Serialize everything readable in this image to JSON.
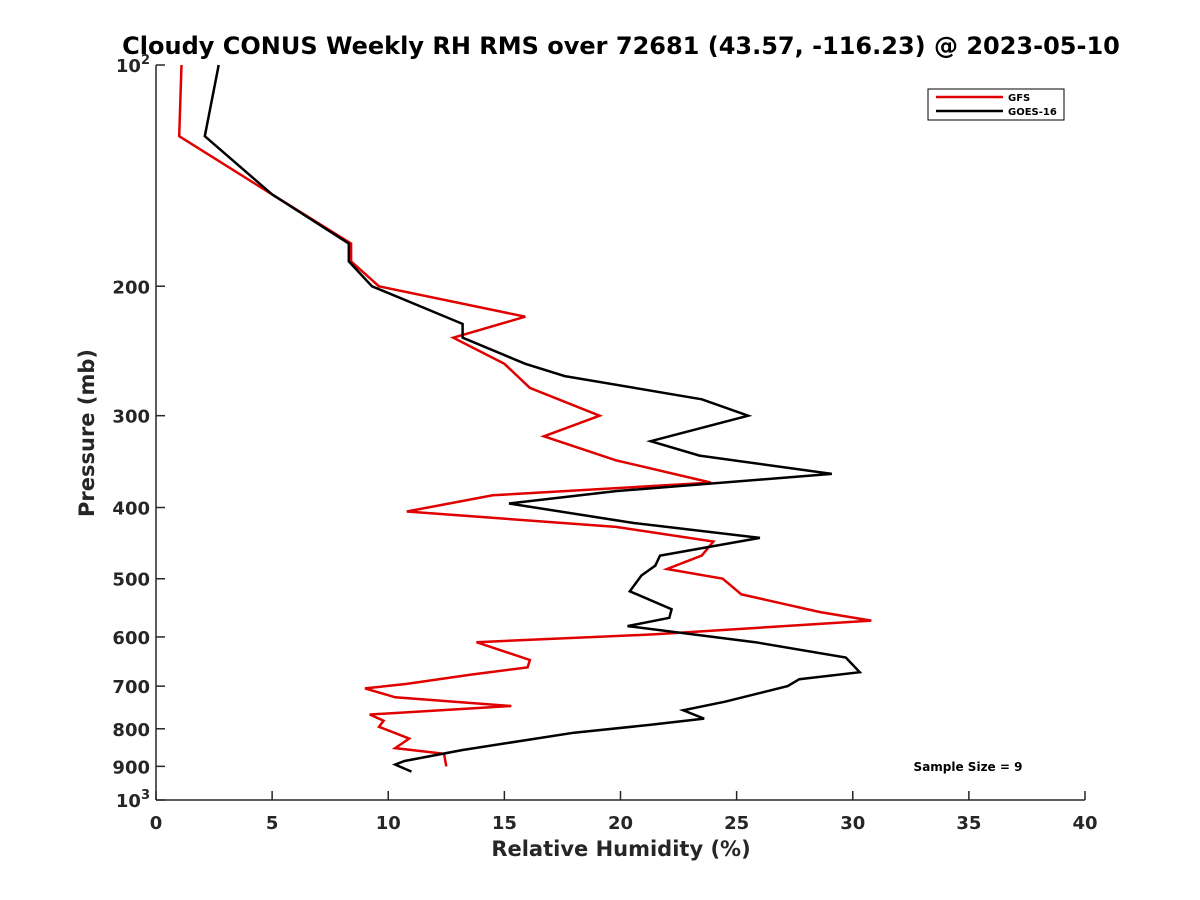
{
  "chart_data": {
    "type": "line",
    "title": "Cloudy CONUS Weekly RH RMS over 72681 (43.57, -116.23) @ 2023-05-10",
    "xlabel": "Relative Humidity (%)",
    "ylabel": "Pressure (mb)",
    "xlim": [
      0,
      40
    ],
    "ylim": [
      100,
      1000
    ],
    "y_scale": "log",
    "y_reversed": true,
    "x_ticks": [
      "0",
      "5",
      "10",
      "15",
      "20",
      "25",
      "30",
      "35",
      "40"
    ],
    "y_ticks": [
      {
        "value": 100,
        "base": "10",
        "exp": "2"
      },
      {
        "value": 200,
        "label": "200"
      },
      {
        "value": 300,
        "label": "300"
      },
      {
        "value": 400,
        "label": "400"
      },
      {
        "value": 500,
        "label": "500"
      },
      {
        "value": 600,
        "label": "600"
      },
      {
        "value": 700,
        "label": "700"
      },
      {
        "value": 800,
        "label": "800"
      },
      {
        "value": 900,
        "label": "900"
      },
      {
        "value": 1000,
        "base": "10",
        "exp": "3"
      }
    ],
    "annotation": "Sample Size = 9",
    "legend_position": "top-right",
    "grid": false,
    "series": [
      {
        "name": "GFS",
        "color": "#e00000",
        "points": [
          [
            1.1,
            100
          ],
          [
            1.0,
            125
          ],
          [
            5.0,
            150
          ],
          [
            8.4,
            175
          ],
          [
            8.4,
            185
          ],
          [
            9.6,
            200
          ],
          [
            15.9,
            220
          ],
          [
            12.8,
            235
          ],
          [
            15.0,
            255
          ],
          [
            16.1,
            275
          ],
          [
            19.1,
            300
          ],
          [
            16.7,
            320
          ],
          [
            19.8,
            345
          ],
          [
            23.9,
            370
          ],
          [
            14.5,
            385
          ],
          [
            10.8,
            405
          ],
          [
            19.8,
            425
          ],
          [
            24.0,
            445
          ],
          [
            23.5,
            465
          ],
          [
            22.0,
            485
          ],
          [
            24.4,
            500
          ],
          [
            25.2,
            525
          ],
          [
            28.6,
            555
          ],
          [
            30.8,
            570
          ],
          [
            21.5,
            595
          ],
          [
            13.8,
            610
          ],
          [
            16.1,
            645
          ],
          [
            16.0,
            660
          ],
          [
            13.6,
            675
          ],
          [
            10.8,
            695
          ],
          [
            9.0,
            705
          ],
          [
            10.3,
            725
          ],
          [
            15.3,
            745
          ],
          [
            9.2,
            765
          ],
          [
            9.8,
            780
          ],
          [
            9.6,
            795
          ],
          [
            10.9,
            825
          ],
          [
            10.3,
            850
          ],
          [
            12.4,
            865
          ],
          [
            12.5,
            900
          ]
        ]
      },
      {
        "name": "GOES-16",
        "color": "#000000",
        "points": [
          [
            2.7,
            100
          ],
          [
            2.1,
            125
          ],
          [
            5.0,
            150
          ],
          [
            8.3,
            175
          ],
          [
            8.3,
            185
          ],
          [
            9.3,
            200
          ],
          [
            13.2,
            225
          ],
          [
            13.2,
            235
          ],
          [
            15.9,
            255
          ],
          [
            17.6,
            265
          ],
          [
            23.5,
            285
          ],
          [
            25.5,
            300
          ],
          [
            21.3,
            325
          ],
          [
            23.4,
            340
          ],
          [
            29.1,
            360
          ],
          [
            19.8,
            380
          ],
          [
            15.2,
            395
          ],
          [
            20.6,
            420
          ],
          [
            26.0,
            440
          ],
          [
            21.7,
            465
          ],
          [
            21.5,
            480
          ],
          [
            20.9,
            495
          ],
          [
            20.4,
            520
          ],
          [
            22.2,
            550
          ],
          [
            22.1,
            565
          ],
          [
            20.3,
            580
          ],
          [
            25.8,
            610
          ],
          [
            29.7,
            640
          ],
          [
            30.3,
            670
          ],
          [
            27.7,
            685
          ],
          [
            27.2,
            700
          ],
          [
            24.5,
            735
          ],
          [
            22.7,
            755
          ],
          [
            23.6,
            775
          ],
          [
            21.3,
            790
          ],
          [
            18.0,
            810
          ],
          [
            13.2,
            855
          ],
          [
            10.7,
            885
          ],
          [
            10.3,
            895
          ],
          [
            11.0,
            915
          ]
        ]
      }
    ]
  }
}
